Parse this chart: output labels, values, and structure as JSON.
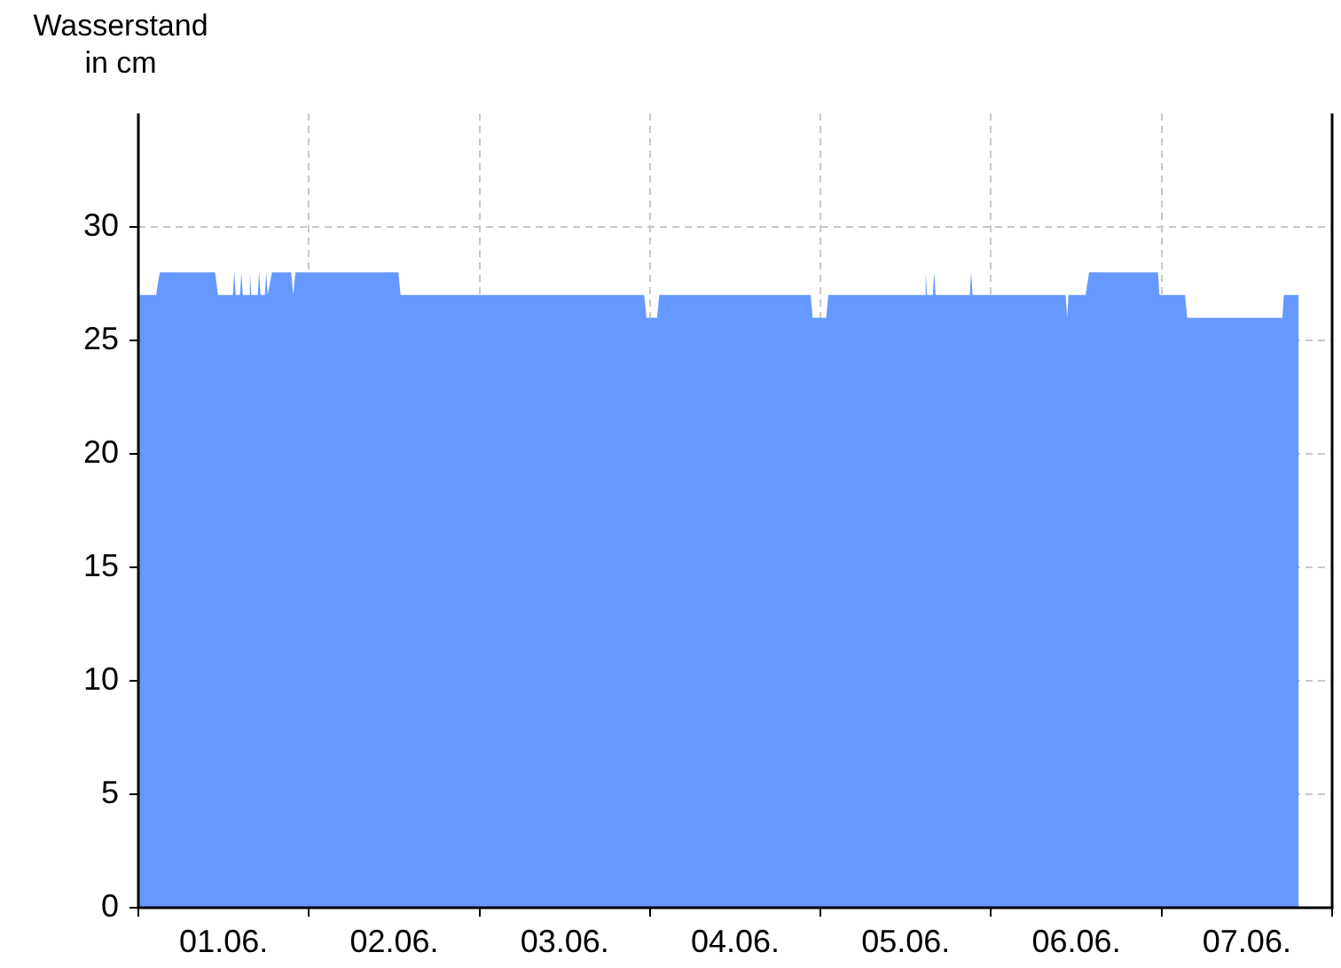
{
  "chart_data": {
    "type": "area",
    "ylabel": "Wasserstand in cm",
    "color": "#6699ff",
    "grid": true,
    "xlim": [
      "--06-01T00:00",
      "--06-08T00:00"
    ],
    "xticks": [
      {
        "value": "--06-01T00:00",
        "label": null
      },
      {
        "value": "--06-01T12:00",
        "label": "01.06."
      },
      {
        "value": "--06-02T00:00",
        "label": null
      },
      {
        "value": "--06-02T12:00",
        "label": "02.06."
      },
      {
        "value": "--06-03T00:00",
        "label": null
      },
      {
        "value": "--06-03T12:00",
        "label": "03.06."
      },
      {
        "value": "--06-04T00:00",
        "label": null
      },
      {
        "value": "--06-04T12:00",
        "label": "04.06."
      },
      {
        "value": "--06-05T00:00",
        "label": null
      },
      {
        "value": "--06-05T12:00",
        "label": "05.06."
      },
      {
        "value": "--06-06T00:00",
        "label": null
      },
      {
        "value": "--06-06T12:00",
        "label": "06.06."
      },
      {
        "value": "--06-07T00:00",
        "label": null
      },
      {
        "value": "--06-07T12:00",
        "label": "07.06."
      },
      {
        "value": "--06-08T00:00",
        "label": null
      }
    ],
    "ylim": [
      0,
      35
    ],
    "yticks": [
      0,
      5,
      10,
      15,
      20,
      25,
      30
    ],
    "x": [
      "--06-01T00:00",
      "--06-01T02:30",
      "--06-01T03:00",
      "--06-01T10:48",
      "--06-01T11:12",
      "--06-01T13:18",
      "--06-01T13:30",
      "--06-01T13:42",
      "--06-01T14:18",
      "--06-01T14:30",
      "--06-01T14:42",
      "--06-01T15:30",
      "--06-01T15:42",
      "--06-01T15:54",
      "--06-01T16:48",
      "--06-01T17:00",
      "--06-01T17:12",
      "--06-01T17:48",
      "--06-01T18:00",
      "--06-01T18:12",
      "--06-01T18:48",
      "--06-01T21:30",
      "--06-01T21:48",
      "--06-01T22:06",
      "--06-02T12:36",
      "--06-02T12:54",
      "--06-03T23:12",
      "--06-03T23:30",
      "--06-04T01:00",
      "--06-04T01:18",
      "--06-04T22:36",
      "--06-04T22:54",
      "--06-05T00:48",
      "--06-05T01:06",
      "--06-05T14:36",
      "--06-05T14:48",
      "--06-05T15:00",
      "--06-05T15:48",
      "--06-05T16:00",
      "--06-05T16:12",
      "--06-05T21:00",
      "--06-05T21:12",
      "--06-05T21:24",
      "--06-06T10:30",
      "--06-06T10:42",
      "--06-06T10:54",
      "--06-06T13:18",
      "--06-06T13:48",
      "--06-06T23:30",
      "--06-06T23:42",
      "--06-07T03:18",
      "--06-07T03:36",
      "--06-07T17:00",
      "--06-07T17:12",
      "--06-07T19:18"
    ],
    "values": [
      27,
      27,
      28,
      28,
      27,
      27,
      28,
      27,
      27,
      28,
      27,
      27,
      28,
      27,
      27,
      28,
      27,
      27,
      28,
      27,
      28,
      28,
      27,
      28,
      28,
      27,
      27,
      26,
      26,
      27,
      27,
      26,
      26,
      27,
      27,
      28,
      27,
      27,
      28,
      27,
      27,
      28,
      27,
      27,
      26,
      27,
      27,
      28,
      28,
      27,
      27,
      26,
      26,
      27,
      27
    ]
  }
}
